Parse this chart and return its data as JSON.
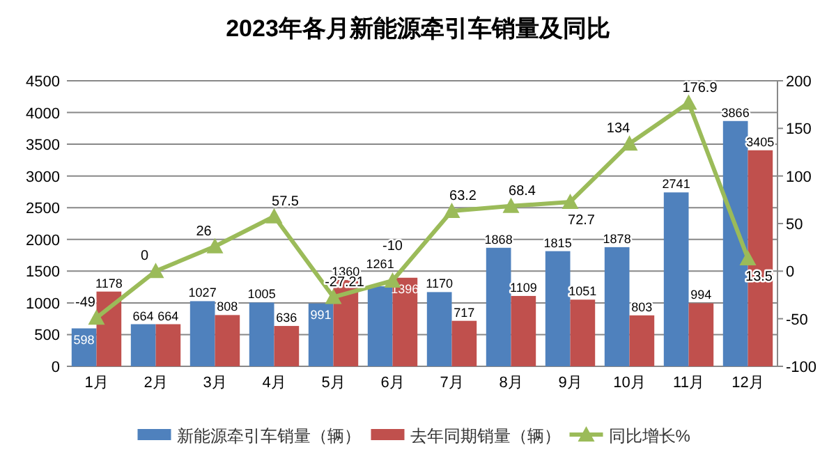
{
  "chart_data": {
    "type": "bar",
    "title": "2023年各月新能源牵引车销量及同比",
    "categories": [
      "1月",
      "2月",
      "3月",
      "4月",
      "5月",
      "6月",
      "7月",
      "8月",
      "9月",
      "10月",
      "11月",
      "12月"
    ],
    "series": [
      {
        "name": "新能源牵引车销量（辆）",
        "color": "#4f81bd",
        "values": [
          598,
          664,
          1027,
          1005,
          991,
          1261,
          1170,
          1868,
          1815,
          1878,
          2741,
          3866
        ]
      },
      {
        "name": "去年同期销量（辆）",
        "color": "#c0504d",
        "values": [
          1178,
          664,
          808,
          636,
          1360,
          1396,
          717,
          1109,
          1051,
          803,
          994,
          3405
        ]
      },
      {
        "name": "同比增长%",
        "color": "#9bbb59",
        "type": "line",
        "axis": "y2",
        "marker": "triangle",
        "values": [
          -49,
          0,
          26,
          57.5,
          -27.21,
          -10,
          63.2,
          68.4,
          72.7,
          134,
          176.9,
          13.5
        ]
      }
    ],
    "ylim": [
      0,
      4500
    ],
    "yticks": [
      0,
      500,
      1000,
      1500,
      2000,
      2500,
      3000,
      3500,
      4000,
      4500
    ],
    "y2lim": [
      -100,
      200
    ],
    "y2ticks": [
      -100,
      -50,
      0,
      50,
      100,
      150,
      200
    ],
    "grid": "y",
    "legend": "bottom",
    "data_labels": true
  }
}
